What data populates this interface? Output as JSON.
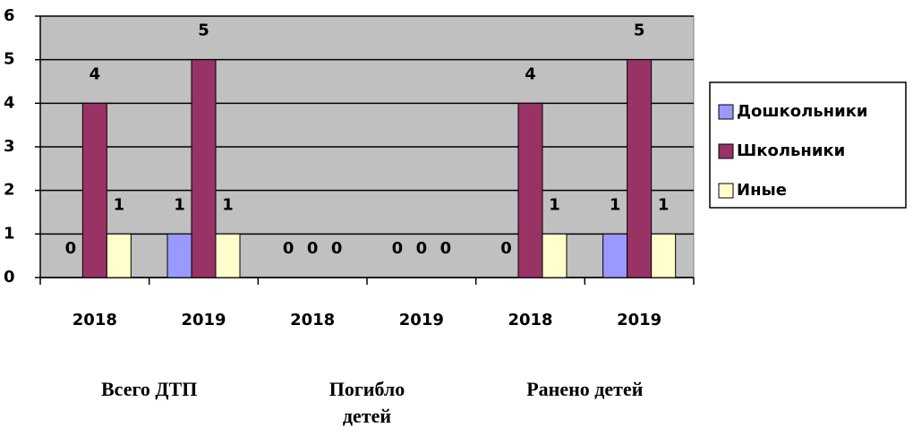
{
  "chart_data": {
    "type": "bar",
    "categories": [
      "2018",
      "2019",
      "2018",
      "2019",
      "2018",
      "2019"
    ],
    "group_labels": [
      "Всего ДТП",
      "Погибло детей",
      "Ранено детей"
    ],
    "series": [
      {
        "name": "Дошкольники",
        "color": "#9999ff",
        "values": [
          0,
          1,
          0,
          0,
          0,
          1
        ]
      },
      {
        "name": "Школьники",
        "color": "#993366",
        "values": [
          4,
          5,
          0,
          0,
          4,
          5
        ]
      },
      {
        "name": "Иные",
        "color": "#ffffcc",
        "values": [
          1,
          1,
          0,
          0,
          1,
          1
        ]
      }
    ],
    "ylim": [
      0,
      6
    ],
    "yticks": [
      0,
      1,
      2,
      3,
      4,
      5,
      6
    ],
    "grid": true,
    "legend": "right"
  }
}
